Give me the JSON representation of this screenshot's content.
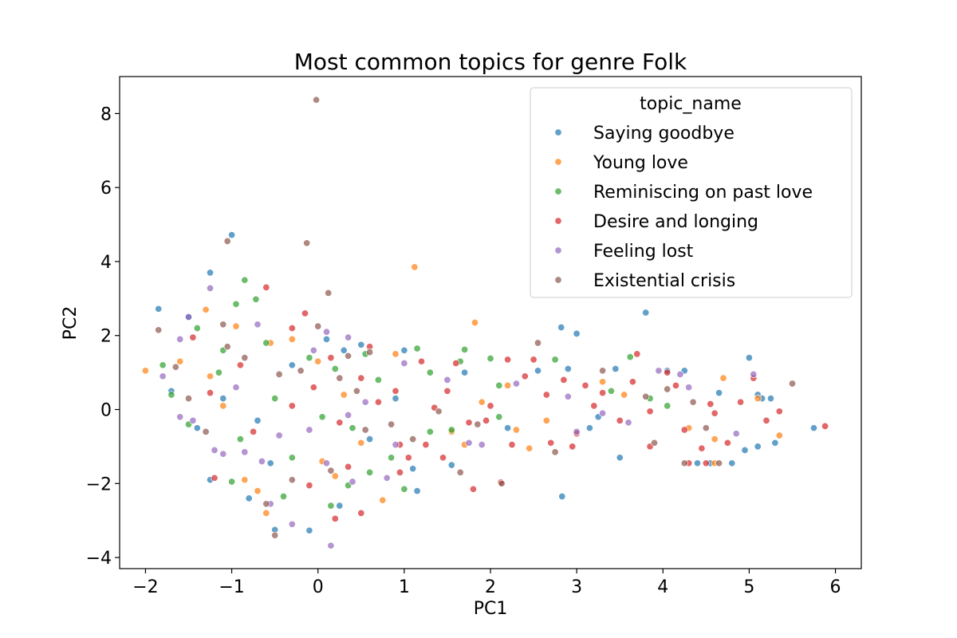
{
  "chart_data": {
    "type": "scatter",
    "title": "Most common topics for genre Folk",
    "xlabel": "PC1",
    "ylabel": "PC2",
    "xlim": [
      -2.3,
      6.3
    ],
    "ylim": [
      -4.3,
      9.0
    ],
    "xticks": [
      -2,
      -1,
      0,
      1,
      2,
      3,
      4,
      5,
      6
    ],
    "yticks": [
      -4,
      -2,
      0,
      2,
      4,
      6,
      8
    ],
    "xtick_labels": [
      "−2",
      "−1",
      "0",
      "1",
      "2",
      "3",
      "4",
      "5",
      "6"
    ],
    "ytick_labels": [
      "−4",
      "−2",
      "0",
      "2",
      "4",
      "6",
      "8"
    ],
    "grid": false,
    "legend": {
      "title": "topic_name",
      "placement": "top-right"
    },
    "series": [
      {
        "name": "Saying goodbye",
        "color": "#1f77b4",
        "points": [
          [
            -1.0,
            4.72
          ],
          [
            -1.25,
            3.7
          ],
          [
            -1.85,
            2.72
          ],
          [
            2.82,
            2.22
          ],
          [
            3.0,
            2.05
          ],
          [
            3.8,
            2.62
          ],
          [
            -0.5,
            -3.25
          ],
          [
            -0.1,
            -3.27
          ],
          [
            2.83,
            -2.35
          ],
          [
            0.25,
            -2.6
          ],
          [
            -0.8,
            -2.4
          ],
          [
            1.15,
            -2.2
          ],
          [
            -1.25,
            -1.9
          ],
          [
            -0.55,
            -1.45
          ],
          [
            3.5,
            -1.3
          ],
          [
            4.4,
            -1.45
          ],
          [
            4.55,
            -1.45
          ],
          [
            4.8,
            -1.45
          ],
          [
            4.95,
            -1.1
          ],
          [
            5.1,
            -1.0
          ],
          [
            5.3,
            -0.9
          ],
          [
            5.75,
            -0.5
          ],
          [
            5.1,
            0.4
          ],
          [
            5.15,
            0.3
          ],
          [
            5.25,
            0.3
          ],
          [
            5.0,
            1.4
          ],
          [
            4.65,
            0.45
          ],
          [
            4.05,
            1.05
          ],
          [
            4.25,
            1.05
          ],
          [
            3.45,
            1.1
          ],
          [
            3.15,
            -0.5
          ],
          [
            3.25,
            -0.2
          ],
          [
            1.55,
            -1.5
          ],
          [
            1.1,
            -1.6
          ],
          [
            1.0,
            1.6
          ],
          [
            0.9,
            0.3
          ],
          [
            -1.7,
            0.5
          ],
          [
            -1.4,
            -0.5
          ],
          [
            -1.1,
            0.3
          ],
          [
            0.1,
            1.9
          ],
          [
            0.3,
            1.6
          ],
          [
            0.5,
            1.75
          ],
          [
            -0.3,
            1.2
          ],
          [
            -1.5,
            2.5
          ],
          [
            -0.7,
            -0.3
          ],
          [
            0.6,
            -0.8
          ],
          [
            1.7,
            1.0
          ],
          [
            2.2,
            -0.5
          ],
          [
            2.55,
            1.05
          ],
          [
            2.9,
            1.1
          ]
        ]
      },
      {
        "name": "Young love",
        "color": "#ff7f0e",
        "points": [
          [
            1.12,
            3.85
          ],
          [
            1.82,
            2.35
          ],
          [
            -2.0,
            1.05
          ],
          [
            -1.3,
            2.7
          ],
          [
            -0.55,
            1.8
          ],
          [
            0.0,
            1.3
          ],
          [
            0.5,
            -0.9
          ],
          [
            -1.25,
            0.9
          ],
          [
            -0.85,
            -1.9
          ],
          [
            -0.7,
            -2.2
          ],
          [
            -0.6,
            -2.8
          ],
          [
            0.2,
            -1.8
          ],
          [
            0.75,
            -2.45
          ],
          [
            4.6,
            -0.8
          ],
          [
            4.3,
            -0.5
          ],
          [
            5.1,
            0.3
          ],
          [
            3.3,
            0.75
          ],
          [
            2.2,
            0.65
          ],
          [
            2.65,
            -0.3
          ],
          [
            1.7,
            -0.95
          ],
          [
            1.55,
            -0.6
          ],
          [
            -1.6,
            1.3
          ],
          [
            0.9,
            1.5
          ],
          [
            -0.3,
            1.9
          ],
          [
            -0.95,
            2.25
          ],
          [
            0.3,
            0.4
          ],
          [
            -1.1,
            0.1
          ],
          [
            2.45,
            -1.05
          ],
          [
            4.7,
            0.85
          ],
          [
            5.35,
            -0.7
          ],
          [
            4.6,
            -1.45
          ],
          [
            0.05,
            -1.4
          ],
          [
            1.9,
            0.2
          ],
          [
            2.3,
            -0.55
          ],
          [
            3.55,
            0.4
          ]
        ]
      },
      {
        "name": "Reminiscing on past love",
        "color": "#2ca02c",
        "points": [
          [
            -0.85,
            3.5
          ],
          [
            -0.95,
            2.85
          ],
          [
            -0.72,
            2.98
          ],
          [
            1.15,
            1.65
          ],
          [
            1.7,
            1.62
          ],
          [
            2.0,
            1.38
          ],
          [
            3.62,
            1.42
          ],
          [
            -1.0,
            -1.95
          ],
          [
            -0.4,
            -2.35
          ],
          [
            0.15,
            -2.6
          ],
          [
            0.35,
            -2.05
          ],
          [
            1.0,
            -2.15
          ],
          [
            -0.9,
            -0.8
          ],
          [
            -0.3,
            -1.3
          ],
          [
            -1.7,
            0.4
          ],
          [
            -1.8,
            1.2
          ],
          [
            -1.4,
            2.2
          ],
          [
            -1.1,
            1.6
          ],
          [
            -0.6,
            1.8
          ],
          [
            -0.1,
            1.4
          ],
          [
            0.2,
            1.1
          ],
          [
            0.55,
            1.5
          ],
          [
            0.6,
            -1.7
          ],
          [
            0.7,
            0.8
          ],
          [
            1.3,
            -0.6
          ],
          [
            1.55,
            -0.55
          ],
          [
            2.1,
            -0.2
          ],
          [
            2.75,
            1.35
          ],
          [
            3.4,
            0.5
          ],
          [
            3.85,
            0.3
          ],
          [
            4.05,
            0.1
          ],
          [
            -0.5,
            0.3
          ],
          [
            0.05,
            -0.2
          ],
          [
            -1.5,
            -0.4
          ],
          [
            -1.15,
            1.0
          ],
          [
            0.4,
            -0.5
          ],
          [
            0.85,
            -1.3
          ],
          [
            1.3,
            1.0
          ],
          [
            1.65,
            1.3
          ],
          [
            2.1,
            0.65
          ]
        ]
      },
      {
        "name": "Desire and longing",
        "color": "#d62728",
        "points": [
          [
            -0.6,
            3.3
          ],
          [
            -0.15,
            2.6
          ],
          [
            1.2,
            1.3
          ],
          [
            1.6,
            1.25
          ],
          [
            2.2,
            1.35
          ],
          [
            2.5,
            1.35
          ],
          [
            3.7,
            1.5
          ],
          [
            4.05,
            1.0
          ],
          [
            4.3,
            -1.45
          ],
          [
            4.5,
            -1.45
          ],
          [
            4.75,
            -0.9
          ],
          [
            5.05,
            0.85
          ],
          [
            5.35,
            -0.05
          ],
          [
            5.88,
            -0.45
          ],
          [
            2.12,
            -1.97
          ],
          [
            1.8,
            -2.15
          ],
          [
            0.5,
            -2.8
          ],
          [
            0.2,
            -2.95
          ],
          [
            -1.2,
            -1.85
          ],
          [
            -0.1,
            -2.05
          ],
          [
            0.95,
            -1.7
          ],
          [
            1.45,
            -1.3
          ],
          [
            0.6,
            1.7
          ],
          [
            0.9,
            0.5
          ],
          [
            0.95,
            -0.95
          ],
          [
            1.25,
            -0.95
          ],
          [
            1.95,
            -0.3
          ],
          [
            2.25,
            -0.95
          ],
          [
            2.65,
            0.4
          ],
          [
            3.1,
            0.65
          ],
          [
            3.3,
            0.45
          ],
          [
            3.5,
            -0.3
          ],
          [
            3.85,
            -0.05
          ],
          [
            4.25,
            -0.55
          ],
          [
            4.55,
            0.15
          ],
          [
            -0.05,
            0.6
          ],
          [
            0.25,
            -0.35
          ],
          [
            0.5,
            0.85
          ],
          [
            -0.75,
            -0.6
          ],
          [
            -1.25,
            0.45
          ],
          [
            -1.45,
            1.95
          ],
          [
            -0.3,
            2.2
          ],
          [
            0.15,
            1.4
          ],
          [
            2.7,
            -0.9
          ],
          [
            3.0,
            -0.65
          ],
          [
            3.85,
            -1.0
          ],
          [
            4.15,
            0.65
          ],
          [
            4.9,
            0.2
          ],
          [
            0.7,
            0.2
          ],
          [
            1.5,
            0.5
          ],
          [
            -0.9,
            1.2
          ],
          [
            1.05,
            -1.3
          ],
          [
            2.0,
            0.1
          ],
          [
            2.85,
            0.8
          ],
          [
            3.2,
            0.1
          ],
          [
            4.6,
            -0.1
          ],
          [
            5.2,
            -0.3
          ],
          [
            1.35,
            0.05
          ],
          [
            0.35,
            -1.55
          ],
          [
            -0.3,
            0.1
          ],
          [
            1.75,
            -0.35
          ],
          [
            2.4,
            0.9
          ],
          [
            2.95,
            -1.0
          ],
          [
            3.65,
            0.75
          ],
          [
            4.45,
            -1.05
          ]
        ]
      },
      {
        "name": "Feeling lost",
        "color": "#9467bd",
        "points": [
          [
            0.15,
            -3.68
          ],
          [
            -0.3,
            -3.1
          ],
          [
            -0.55,
            -2.55
          ],
          [
            0.1,
            -1.45
          ],
          [
            0.4,
            -1.95
          ],
          [
            0.9,
            -0.95
          ],
          [
            1.75,
            -0.9
          ],
          [
            1.9,
            -0.95
          ],
          [
            3.0,
            -0.6
          ],
          [
            3.95,
            1.05
          ],
          [
            4.3,
            0.6
          ],
          [
            4.85,
            -0.65
          ],
          [
            5.05,
            0.95
          ],
          [
            -1.25,
            3.28
          ],
          [
            -1.5,
            2.5
          ],
          [
            -1.6,
            1.9
          ],
          [
            -1.8,
            0.9
          ],
          [
            -1.6,
            -0.2
          ],
          [
            -1.45,
            -0.3
          ],
          [
            -1.2,
            -1.1
          ],
          [
            -1.1,
            -1.2
          ],
          [
            -0.85,
            -1.15
          ],
          [
            -0.65,
            -1.4
          ],
          [
            -0.45,
            -0.7
          ],
          [
            -0.1,
            -0.55
          ],
          [
            0.35,
            -0.15
          ],
          [
            0.8,
            -1.85
          ],
          [
            0.1,
            2.1
          ],
          [
            0.35,
            1.95
          ],
          [
            -0.05,
            1.6
          ],
          [
            -0.7,
            2.3
          ],
          [
            1.5,
            0.8
          ],
          [
            2.3,
            0.7
          ],
          [
            3.3,
            -0.1
          ],
          [
            3.6,
            -0.35
          ],
          [
            4.2,
            0.95
          ],
          [
            -0.95,
            0.6
          ],
          [
            0.55,
            0.2
          ],
          [
            1.0,
            1.25
          ],
          [
            2.9,
            0.35
          ]
        ]
      },
      {
        "name": "Existential crisis",
        "color": "#8c564b",
        "points": [
          [
            -0.02,
            8.37
          ],
          [
            -1.05,
            4.55
          ],
          [
            -0.13,
            4.5
          ],
          [
            0.12,
            3.15
          ],
          [
            0.0,
            2.25
          ],
          [
            -1.85,
            2.15
          ],
          [
            -1.1,
            2.3
          ],
          [
            -0.5,
            -3.4
          ],
          [
            -0.6,
            -2.55
          ],
          [
            -0.3,
            -1.9
          ],
          [
            0.15,
            -1.65
          ],
          [
            2.13,
            -2.0
          ],
          [
            2.75,
            -1.15
          ],
          [
            3.9,
            -0.9
          ],
          [
            4.5,
            -0.5
          ],
          [
            5.5,
            0.7
          ],
          [
            -1.3,
            -0.6
          ],
          [
            -1.5,
            0.3
          ],
          [
            -1.65,
            1.15
          ],
          [
            -0.85,
            1.4
          ],
          [
            -0.2,
            1.05
          ],
          [
            0.35,
            1.45
          ],
          [
            0.45,
            0.5
          ],
          [
            0.55,
            -0.55
          ],
          [
            0.85,
            -0.4
          ],
          [
            1.1,
            -0.8
          ],
          [
            1.65,
            -1.7
          ],
          [
            1.85,
            -0.4
          ],
          [
            2.55,
            1.8
          ],
          [
            3.3,
            1.05
          ],
          [
            4.05,
            0.55
          ],
          [
            4.35,
            0.2
          ],
          [
            4.65,
            -1.45
          ],
          [
            4.25,
            -1.45
          ],
          [
            0.6,
            1.55
          ],
          [
            -1.05,
            1.7
          ],
          [
            -0.45,
            0.95
          ],
          [
            0.25,
            0.85
          ],
          [
            1.4,
            -0.05
          ],
          [
            3.8,
            0.35
          ]
        ]
      }
    ]
  }
}
